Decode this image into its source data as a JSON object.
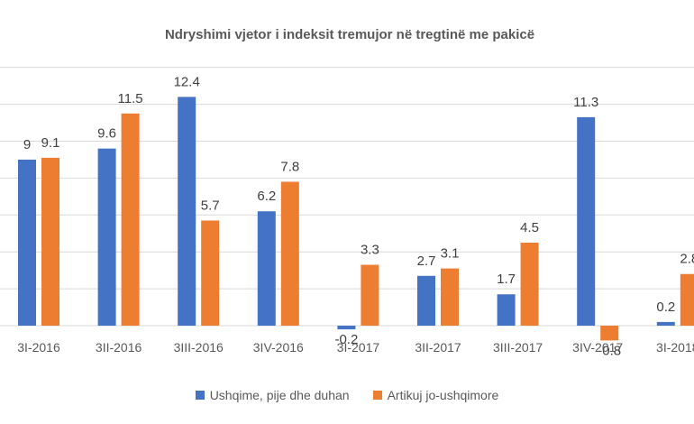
{
  "chart_data": {
    "type": "bar",
    "title": "Ndryshimi vjetor i indeksit tremujor në tregtinë me pakicë",
    "xlabel": "",
    "ylabel": "",
    "ylim": [
      -1,
      14
    ],
    "grid": true,
    "legend": "bottom",
    "categories": [
      "3I-2016",
      "3II-2016",
      "3III-2016",
      "3IV-2016",
      "3I-2017",
      "3II-2017",
      "3III-2017",
      "3IV-2017",
      "3I-2018"
    ],
    "series": [
      {
        "name": "Ushqime, pije dhe duhan",
        "values": [
          9,
          9.6,
          12.4,
          6.2,
          -0.2,
          2.7,
          1.7,
          11.3,
          0.2
        ],
        "color": "#4472C4"
      },
      {
        "name": "Artikuj jo-ushqimore",
        "values": [
          9.1,
          11.5,
          5.7,
          7.8,
          3.3,
          3.1,
          4.5,
          -0.8,
          2.8
        ],
        "color": "#ED7D31"
      }
    ]
  }
}
